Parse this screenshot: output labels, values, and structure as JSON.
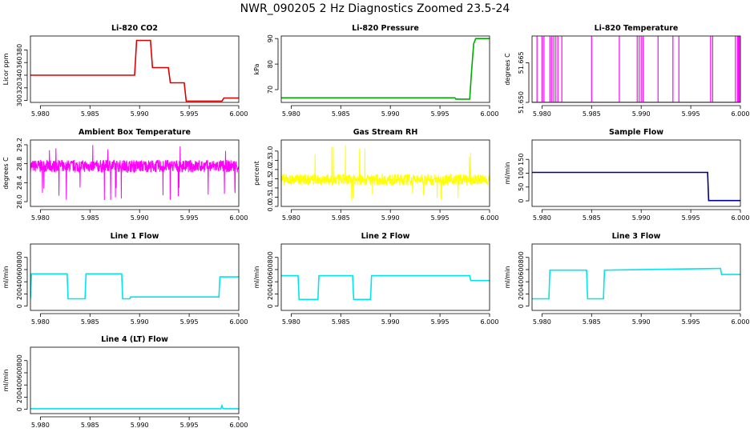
{
  "page": {
    "title": "NWR_090205  2 Hz Diagnostics Zoomed 23.5-24"
  },
  "chart_data": [
    {
      "type": "line",
      "title": "Li-820 CO2",
      "ylabel": "Licor ppm",
      "color": "#dd0000",
      "xlim": [
        5.979,
        6.0
      ],
      "ylim": [
        297,
        402
      ],
      "xticks": [
        "5.980",
        "5.985",
        "5.990",
        "5.995",
        "6.000"
      ],
      "yticks": [
        300,
        320,
        340,
        360,
        380
      ],
      "series": [
        {
          "x": [
            5.979,
            5.9895,
            5.9897,
            5.9911,
            5.9913,
            5.9929,
            5.9931,
            5.9945,
            5.9947,
            5.9983,
            5.9985,
            6.0
          ],
          "y": [
            340,
            340,
            395,
            395,
            352,
            352,
            328,
            328,
            299,
            299,
            304,
            304
          ]
        }
      ]
    },
    {
      "type": "line",
      "title": "Li-820 Pressure",
      "ylabel": "kPa",
      "color": "#00aa00",
      "xlim": [
        5.979,
        6.0
      ],
      "ylim": [
        65,
        91
      ],
      "xticks": [
        "5.980",
        "5.985",
        "5.990",
        "5.995",
        "6.000"
      ],
      "yticks": [
        70,
        80,
        90
      ],
      "series": [
        {
          "x": [
            5.979,
            5.9965,
            5.9966,
            5.998,
            5.9982,
            5.9984,
            5.9986,
            6.0
          ],
          "y": [
            66.8,
            66.8,
            66.3,
            66.3,
            78,
            88,
            90,
            90
          ]
        }
      ]
    },
    {
      "type": "line",
      "title": "Li-820 Temperature",
      "ylabel": "degrees C",
      "color": "#ff00ff",
      "xlim": [
        5.979,
        6.0
      ],
      "ylim": [
        51.65,
        51.6751
      ],
      "xticks": [
        "5.980",
        "5.985",
        "5.990",
        "5.995",
        "6.000"
      ],
      "yticks": [
        "51.650",
        "51.665"
      ],
      "baseline": 51.65,
      "spike_top": 51.675,
      "spikes": [
        5.9795,
        5.98,
        5.9802,
        5.9808,
        5.981,
        5.9812,
        5.9814,
        5.9816,
        5.982,
        5.985,
        5.9878,
        5.9896,
        5.9898,
        5.99,
        5.9902,
        5.9917,
        5.9932,
        5.9938,
        5.997,
        5.9972,
        5.9995,
        5.9997,
        5.9998,
        5.9999,
        6.0
      ]
    },
    {
      "type": "line",
      "title": "Ambient Box Temperature",
      "ylabel": "degrees C",
      "color": "#ff00ff",
      "xlim": [
        5.979,
        6.0
      ],
      "ylim": [
        27.9,
        29.3
      ],
      "xticks": [
        "5.980",
        "5.985",
        "5.990",
        "5.995",
        "6.000"
      ],
      "yticks": [
        "28.0",
        "28.4",
        "28.8",
        "29.2"
      ],
      "noise": {
        "center": 28.75,
        "amplitude": 0.13,
        "spike_low": 28.0,
        "spike_high": 29.2
      }
    },
    {
      "type": "line",
      "title": "Gas Stream RH",
      "ylabel": "percent",
      "color": "#ffff00",
      "xlim": [
        5.979,
        6.0
      ],
      "ylim": [
        0,
        3.6
      ],
      "xticks": [
        "5.980",
        "5.985",
        "5.990",
        "5.995",
        "6.000"
      ],
      "yticks": [
        "0.0",
        "0.5",
        "1.0",
        "1.5",
        "2.0",
        "2.5",
        "3.0"
      ],
      "noise": {
        "center": 1.45,
        "amplitude": 0.3,
        "spike_low": 0.3,
        "spike_high": 3.4
      }
    },
    {
      "type": "line",
      "title": "Sample Flow",
      "ylabel": "ml/min",
      "color": "#00008b",
      "xlim": [
        5.979,
        6.0
      ],
      "ylim": [
        -20,
        220
      ],
      "xticks": [
        "5.980",
        "5.985",
        "5.990",
        "5.995",
        "6.000"
      ],
      "yticks": [
        0,
        50,
        100,
        150
      ],
      "series": [
        {
          "x": [
            5.979,
            5.9967,
            5.9968,
            6.0
          ],
          "y": [
            103,
            103,
            1,
            1
          ]
        }
      ]
    },
    {
      "type": "line",
      "title": "Line 1 Flow",
      "ylabel": "ml/min",
      "color": "#00e5ee",
      "xlim": [
        5.979,
        6.0
      ],
      "ylim": [
        -70,
        1020
      ],
      "xticks": [
        "5.980",
        "5.985",
        "5.990",
        "5.995",
        "6.000"
      ],
      "yticks": [
        0,
        200,
        400,
        600,
        800
      ],
      "series": [
        {
          "x": [
            5.979,
            5.9791,
            5.9827,
            5.9828,
            5.9845,
            5.9846,
            5.9882,
            5.9883,
            5.989,
            5.9891,
            5.998,
            5.9981,
            6.0
          ],
          "y": [
            120,
            530,
            530,
            120,
            120,
            530,
            530,
            120,
            120,
            150,
            150,
            480,
            480
          ]
        }
      ]
    },
    {
      "type": "line",
      "title": "Line 2 Flow",
      "ylabel": "ml/min",
      "color": "#00e5ee",
      "xlim": [
        5.979,
        6.0
      ],
      "ylim": [
        -70,
        1020
      ],
      "xticks": [
        "5.980",
        "5.985",
        "5.990",
        "5.995",
        "6.000"
      ],
      "yticks": [
        0,
        200,
        400,
        600,
        800
      ],
      "series": [
        {
          "x": [
            5.979,
            5.9807,
            5.9808,
            5.9827,
            5.9828,
            5.9862,
            5.9863,
            5.988,
            5.9881,
            5.998,
            5.9981,
            6.0
          ],
          "y": [
            500,
            500,
            110,
            110,
            500,
            500,
            110,
            110,
            500,
            500,
            420,
            420
          ]
        }
      ]
    },
    {
      "type": "line",
      "title": "Line 3 Flow",
      "ylabel": "ml/min",
      "color": "#00e5ee",
      "xlim": [
        5.979,
        6.0
      ],
      "ylim": [
        -70,
        1020
      ],
      "xticks": [
        "5.980",
        "5.985",
        "5.990",
        "5.995",
        "6.000"
      ],
      "yticks": [
        0,
        200,
        400,
        600,
        800
      ],
      "series": [
        {
          "x": [
            5.979,
            5.9791,
            5.9807,
            5.9808,
            5.9845,
            5.9846,
            5.9862,
            5.9863,
            5.998,
            5.9981,
            6.0
          ],
          "y": [
            120,
            120,
            120,
            590,
            590,
            120,
            120,
            590,
            620,
            520,
            520
          ]
        }
      ]
    },
    {
      "type": "line",
      "title": "Line 4 (LT) Flow",
      "ylabel": "ml/min",
      "color": "#00e5ee",
      "xlim": [
        5.979,
        6.0
      ],
      "ylim": [
        -70,
        1020
      ],
      "xticks": [
        "5.980",
        "5.985",
        "5.990",
        "5.995",
        "6.000"
      ],
      "yticks": [
        0,
        200,
        400,
        600,
        800
      ],
      "series": [
        {
          "x": [
            5.979,
            5.9982,
            5.9983,
            5.9984,
            5.9986,
            6.0
          ],
          "y": [
            10,
            10,
            60,
            15,
            10,
            10
          ]
        }
      ]
    }
  ]
}
